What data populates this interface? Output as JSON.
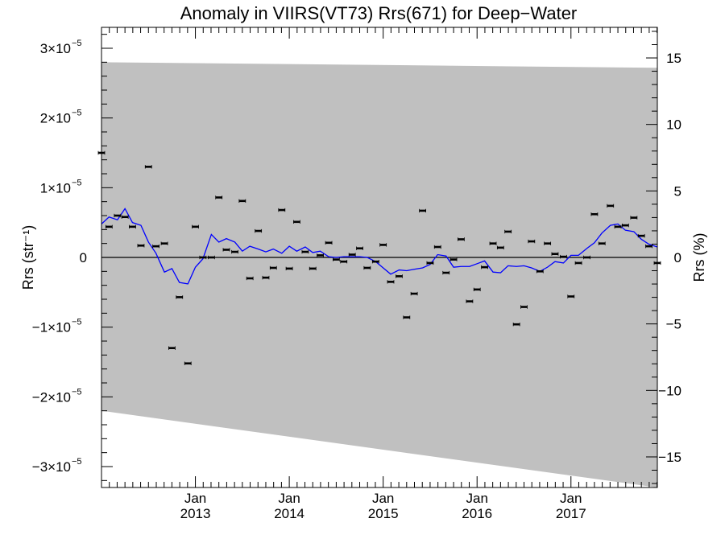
{
  "chart_data": {
    "type": "scatter",
    "title": "Anomaly in VIIRS(VT73) Rrs(671) for Deep−Water",
    "ylabel_left": "Rrs (str⁻¹)",
    "ylabel_right": "Rrs (%)",
    "xlim": [
      2012.0,
      2017.92
    ],
    "ylim": [
      -3.3e-05,
      3.3e-05
    ],
    "ylim_right": [
      -17.3,
      17.3
    ],
    "x_ticks": [
      {
        "x": 2013.0,
        "line1": "Jan",
        "line2": "2013"
      },
      {
        "x": 2014.0,
        "line1": "Jan",
        "line2": "2014"
      },
      {
        "x": 2015.0,
        "line1": "Jan",
        "line2": "2015"
      },
      {
        "x": 2016.0,
        "line1": "Jan",
        "line2": "2016"
      },
      {
        "x": 2017.0,
        "line1": "Jan",
        "line2": "2017"
      }
    ],
    "y_ticks_left": [
      {
        "v": 3e-05,
        "mant": "3×10",
        "exp": "−5"
      },
      {
        "v": 2e-05,
        "mant": "2×10",
        "exp": "−5"
      },
      {
        "v": 1e-05,
        "mant": "1×10",
        "exp": "−5"
      },
      {
        "v": 0,
        "mant": "0",
        "exp": ""
      },
      {
        "v": -1e-05,
        "mant": "−1×10",
        "exp": "−5"
      },
      {
        "v": -2e-05,
        "mant": "−2×10",
        "exp": "−5"
      },
      {
        "v": -3e-05,
        "mant": "−3×10",
        "exp": "−5"
      }
    ],
    "y_ticks_right": [
      {
        "v": 15,
        "label": "15"
      },
      {
        "v": 10,
        "label": "10"
      },
      {
        "v": 5,
        "label": "5"
      },
      {
        "v": 0,
        "label": "0"
      },
      {
        "v": -5,
        "label": "−5"
      },
      {
        "v": -10,
        "label": "−10"
      },
      {
        "v": -15,
        "label": "−15"
      }
    ],
    "band": {
      "x": [
        2012.0,
        2017.92
      ],
      "upper": [
        2.8e-05,
        2.72e-05
      ],
      "lower": [
        -2.2e-05,
        -3.3e-05
      ],
      "color": "#c0c0c0"
    },
    "points": [
      {
        "x": 2012.0,
        "y": 1.5e-05
      },
      {
        "x": 2012.08,
        "y": 4.4e-06
      },
      {
        "x": 2012.17,
        "y": 6e-06
      },
      {
        "x": 2012.25,
        "y": 5.8e-06
      },
      {
        "x": 2012.33,
        "y": 4.4e-06
      },
      {
        "x": 2012.42,
        "y": 1.7e-06
      },
      {
        "x": 2012.5,
        "y": 1.3e-05
      },
      {
        "x": 2012.58,
        "y": 1.6e-06
      },
      {
        "x": 2012.67,
        "y": 2e-06
      },
      {
        "x": 2012.75,
        "y": -1.3e-05
      },
      {
        "x": 2012.83,
        "y": -5.7e-06
      },
      {
        "x": 2012.92,
        "y": -1.52e-05
      },
      {
        "x": 2013.0,
        "y": 4.4e-06
      },
      {
        "x": 2013.08,
        "y": 0.0
      },
      {
        "x": 2013.17,
        "y": 0.0
      },
      {
        "x": 2013.25,
        "y": 8.6e-06
      },
      {
        "x": 2013.33,
        "y": 1.1e-06
      },
      {
        "x": 2013.42,
        "y": 8e-07
      },
      {
        "x": 2013.5,
        "y": 8.1e-06
      },
      {
        "x": 2013.58,
        "y": -3e-06
      },
      {
        "x": 2013.67,
        "y": 3.8e-06
      },
      {
        "x": 2013.75,
        "y": -2.9e-06
      },
      {
        "x": 2013.83,
        "y": -1.5e-06
      },
      {
        "x": 2013.92,
        "y": 6.8e-06
      },
      {
        "x": 2014.0,
        "y": -1.6e-06
      },
      {
        "x": 2014.08,
        "y": 5.1e-06
      },
      {
        "x": 2014.17,
        "y": 8e-07
      },
      {
        "x": 2014.25,
        "y": -1.6e-06
      },
      {
        "x": 2014.33,
        "y": 3e-07
      },
      {
        "x": 2014.42,
        "y": 2.1e-06
      },
      {
        "x": 2014.5,
        "y": -3e-07
      },
      {
        "x": 2014.58,
        "y": -6e-07
      },
      {
        "x": 2014.67,
        "y": 4e-07
      },
      {
        "x": 2014.75,
        "y": 1.3e-06
      },
      {
        "x": 2014.83,
        "y": -1.5e-06
      },
      {
        "x": 2014.92,
        "y": -6e-07
      },
      {
        "x": 2015.0,
        "y": 1.8e-06
      },
      {
        "x": 2015.08,
        "y": -3.5e-06
      },
      {
        "x": 2015.17,
        "y": -2.7e-06
      },
      {
        "x": 2015.25,
        "y": -8.6e-06
      },
      {
        "x": 2015.33,
        "y": -5.2e-06
      },
      {
        "x": 2015.42,
        "y": 6.7e-06
      },
      {
        "x": 2015.5,
        "y": -8e-07
      },
      {
        "x": 2015.58,
        "y": 1.5e-06
      },
      {
        "x": 2015.67,
        "y": -2.2e-06
      },
      {
        "x": 2015.75,
        "y": -3e-07
      },
      {
        "x": 2015.83,
        "y": 2.6e-06
      },
      {
        "x": 2015.92,
        "y": -6.3e-06
      },
      {
        "x": 2016.0,
        "y": -4.6e-06
      },
      {
        "x": 2016.08,
        "y": -1.4e-06
      },
      {
        "x": 2016.17,
        "y": 2e-06
      },
      {
        "x": 2016.25,
        "y": 1.4e-06
      },
      {
        "x": 2016.33,
        "y": 3.7e-06
      },
      {
        "x": 2016.42,
        "y": -9.6e-06
      },
      {
        "x": 2016.5,
        "y": -7.1e-06
      },
      {
        "x": 2016.58,
        "y": 2.3e-06
      },
      {
        "x": 2016.67,
        "y": -2e-06
      },
      {
        "x": 2016.75,
        "y": 2e-06
      },
      {
        "x": 2016.83,
        "y": 5e-07
      },
      {
        "x": 2016.92,
        "y": 1e-07
      },
      {
        "x": 2017.0,
        "y": -5.6e-06
      },
      {
        "x": 2017.08,
        "y": -8e-07
      },
      {
        "x": 2017.17,
        "y": 0.0
      },
      {
        "x": 2017.25,
        "y": 6.2e-06
      },
      {
        "x": 2017.33,
        "y": 2e-06
      },
      {
        "x": 2017.42,
        "y": 7.4e-06
      },
      {
        "x": 2017.5,
        "y": 4.4e-06
      },
      {
        "x": 2017.58,
        "y": 4.6e-06
      },
      {
        "x": 2017.67,
        "y": 5.7e-06
      },
      {
        "x": 2017.75,
        "y": 3.1e-06
      },
      {
        "x": 2017.83,
        "y": 1.6e-06
      },
      {
        "x": 2017.92,
        "y": -8e-07
      }
    ],
    "line": {
      "color": "#0000ff",
      "x": [
        2012.0,
        2012.08,
        2012.17,
        2012.25,
        2012.33,
        2012.42,
        2012.5,
        2012.58,
        2012.67,
        2012.75,
        2012.83,
        2012.92,
        2013.0,
        2013.08,
        2013.17,
        2013.25,
        2013.33,
        2013.42,
        2013.5,
        2013.58,
        2013.67,
        2013.75,
        2013.83,
        2013.92,
        2014.0,
        2014.08,
        2014.17,
        2014.25,
        2014.33,
        2014.42,
        2014.5,
        2014.58,
        2014.67,
        2014.75,
        2014.83,
        2014.92,
        2015.0,
        2015.08,
        2015.17,
        2015.25,
        2015.33,
        2015.42,
        2015.5,
        2015.58,
        2015.67,
        2015.75,
        2015.83,
        2015.92,
        2016.0,
        2016.08,
        2016.17,
        2016.25,
        2016.33,
        2016.42,
        2016.5,
        2016.58,
        2016.67,
        2016.75,
        2016.83,
        2016.92,
        2017.0,
        2017.08,
        2017.17,
        2017.25,
        2017.33,
        2017.42,
        2017.5,
        2017.58,
        2017.67,
        2017.75,
        2017.83,
        2017.92
      ],
      "y": [
        4.8e-06,
        5.8e-06,
        5.4e-06,
        7e-06,
        5e-06,
        4.6e-06,
        2.2e-06,
        6e-07,
        -2.1e-06,
        -1.6e-06,
        -3.6e-06,
        -3.8e-06,
        -1.4e-06,
        -2e-07,
        3.3e-06,
        2.2e-06,
        2.7e-06,
        2.2e-06,
        9e-07,
        1.6e-06,
        1.2e-06,
        8e-07,
        1.2e-06,
        6e-07,
        1.6e-06,
        9e-07,
        1.5e-06,
        7e-07,
        9e-07,
        1e-07,
        0.0,
        1e-07,
        1e-07,
        1e-07,
        0.0,
        -6e-07,
        -1.5e-06,
        -2.4e-06,
        -1.8e-06,
        -1.9e-06,
        -1.7e-06,
        -1.5e-06,
        -1e-06,
        4e-07,
        2e-07,
        -1.4e-06,
        -1.3e-06,
        -1.3e-06,
        -9e-07,
        -5e-07,
        -2.1e-06,
        -2.2e-06,
        -1.2e-06,
        -1.3e-06,
        -1.2e-06,
        -1.5e-06,
        -2e-06,
        -1.4e-06,
        -6e-07,
        -8e-07,
        3e-07,
        3e-07,
        1.3e-06,
        2.1e-06,
        3.5e-06,
        4.6e-06,
        4.8e-06,
        3.9e-06,
        3.7e-06,
        2.6e-06,
        1.9e-06,
        1.5e-06
      ]
    },
    "zero_line": 0,
    "grid": false,
    "legend": "none"
  }
}
